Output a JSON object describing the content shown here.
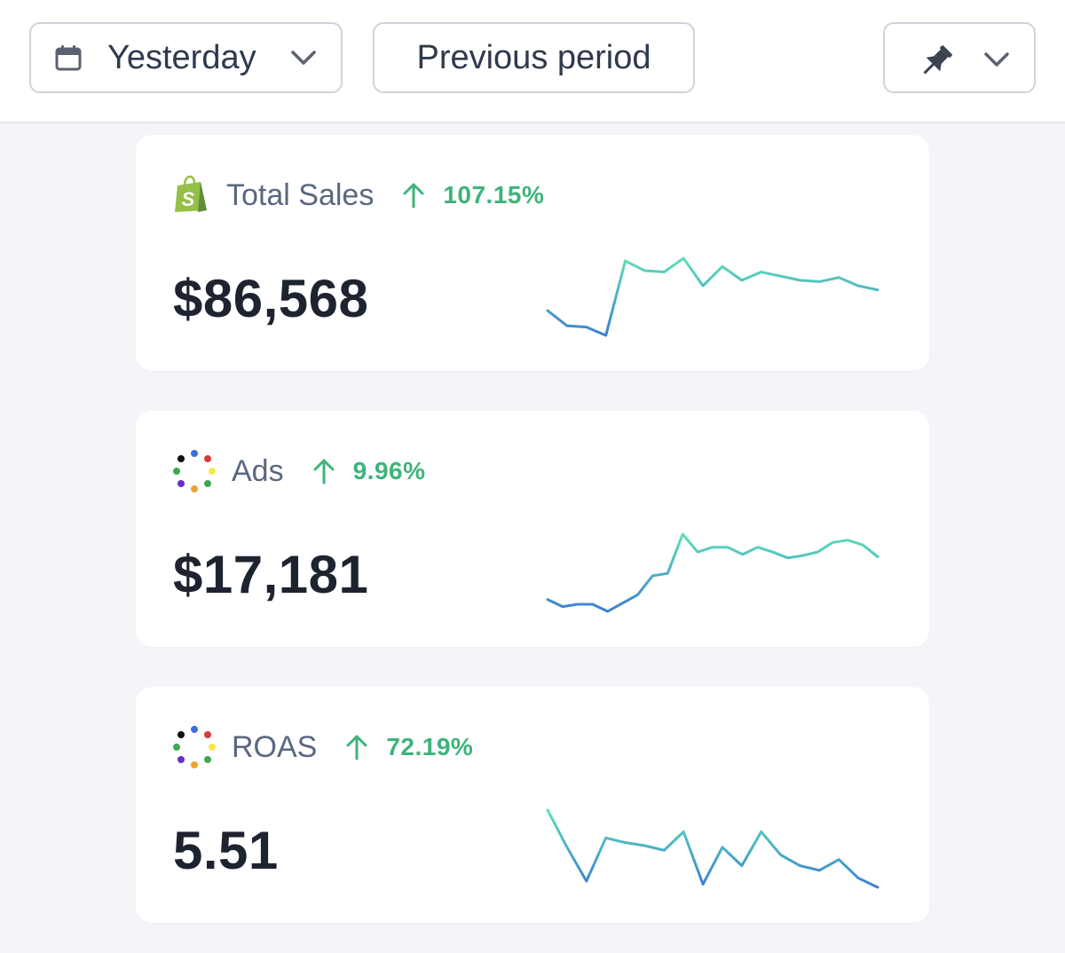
{
  "toolbar": {
    "date_range": {
      "label": "Yesterday",
      "icon": "calendar-icon"
    },
    "compare_label": "Previous period",
    "pin_icon": "pin-icon"
  },
  "metrics": [
    {
      "label": "Total Sales",
      "source_icon": "shopify-icon",
      "change": "107.15%",
      "change_direction": "up",
      "value": "$86,568",
      "sparkline": [
        62,
        51,
        50,
        44,
        98,
        91,
        90,
        100,
        80,
        94,
        84,
        90,
        87,
        84,
        83,
        86,
        80,
        77
      ]
    },
    {
      "label": "Ads",
      "source_icon": "multicolor-dots-icon",
      "change": "9.96%",
      "change_direction": "up",
      "value": "$17,181",
      "sparkline": [
        40,
        34,
        36,
        36,
        30,
        37,
        44,
        60,
        62,
        95,
        80,
        84,
        84,
        78,
        84,
        80,
        75,
        77,
        80,
        88,
        90,
        86,
        76
      ]
    },
    {
      "label": "ROAS",
      "source_icon": "multicolor-dots-icon",
      "change": "72.19%",
      "change_direction": "up",
      "value": "5.51",
      "sparkline": [
        94,
        70,
        48,
        76,
        73,
        71,
        68,
        80,
        46,
        70,
        58,
        80,
        65,
        58,
        55,
        62,
        50,
        44
      ]
    }
  ],
  "colors": {
    "positive": "#3fb37a",
    "spark_start": "#3a7bd5",
    "spark_end": "#5ee5b6",
    "shopify_green": "#95bf47"
  }
}
